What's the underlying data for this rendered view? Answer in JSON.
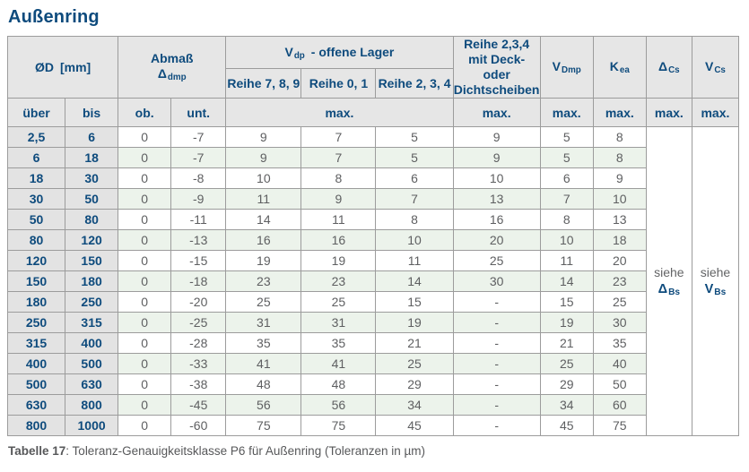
{
  "page_title": "Außenring",
  "colors": {
    "accent_blue": "#0e4b7d",
    "header_bg": "#e6e6e6",
    "range_col_bg": "#e3e3e3",
    "row_alt_bg": "#ecf3eb",
    "data_text": "#5e5f61",
    "border": "#9c9c9c"
  },
  "table": {
    "header": {
      "od": {
        "main": "ØD",
        "unit": "[mm]"
      },
      "abmass": {
        "line1": "Abmaß",
        "sym_main": "Δ",
        "sym_sub": "dmp"
      },
      "vdp_group": {
        "main": "V",
        "sub": "dp",
        "rest": "-  offene Lager"
      },
      "reihe_cols": [
        "Reihe 7, 8, 9",
        "Reihe 0, 1",
        "Reihe 2, 3, 4"
      ],
      "deck_lines": [
        "Reihe 2,3,4",
        "mit Deck- oder",
        "Dichtscheiben"
      ],
      "vdmp": {
        "main": "V",
        "sub": "Dmp"
      },
      "kea": {
        "main": "K",
        "sub": "ea"
      },
      "dcs": {
        "main": "Δ",
        "sub": "Cs"
      },
      "vcs": {
        "main": "V",
        "sub": "Cs"
      }
    },
    "subheader": {
      "uber": "über",
      "bis": "bis",
      "ob": "ob.",
      "unt": "unt.",
      "max": "max."
    },
    "rows": [
      {
        "uber": "2,5",
        "bis": "6",
        "ob": "0",
        "unt": "-7",
        "r789": "9",
        "r01": "7",
        "r234": "5",
        "deck": "9",
        "vdmp": "5",
        "kea": "8"
      },
      {
        "uber": "6",
        "bis": "18",
        "ob": "0",
        "unt": "-7",
        "r789": "9",
        "r01": "7",
        "r234": "5",
        "deck": "9",
        "vdmp": "5",
        "kea": "8"
      },
      {
        "uber": "18",
        "bis": "30",
        "ob": "0",
        "unt": "-8",
        "r789": "10",
        "r01": "8",
        "r234": "6",
        "deck": "10",
        "vdmp": "6",
        "kea": "9"
      },
      {
        "uber": "30",
        "bis": "50",
        "ob": "0",
        "unt": "-9",
        "r789": "11",
        "r01": "9",
        "r234": "7",
        "deck": "13",
        "vdmp": "7",
        "kea": "10"
      },
      {
        "uber": "50",
        "bis": "80",
        "ob": "0",
        "unt": "-11",
        "r789": "14",
        "r01": "11",
        "r234": "8",
        "deck": "16",
        "vdmp": "8",
        "kea": "13"
      },
      {
        "uber": "80",
        "bis": "120",
        "ob": "0",
        "unt": "-13",
        "r789": "16",
        "r01": "16",
        "r234": "10",
        "deck": "20",
        "vdmp": "10",
        "kea": "18"
      },
      {
        "uber": "120",
        "bis": "150",
        "ob": "0",
        "unt": "-15",
        "r789": "19",
        "r01": "19",
        "r234": "11",
        "deck": "25",
        "vdmp": "11",
        "kea": "20"
      },
      {
        "uber": "150",
        "bis": "180",
        "ob": "0",
        "unt": "-18",
        "r789": "23",
        "r01": "23",
        "r234": "14",
        "deck": "30",
        "vdmp": "14",
        "kea": "23"
      },
      {
        "uber": "180",
        "bis": "250",
        "ob": "0",
        "unt": "-20",
        "r789": "25",
        "r01": "25",
        "r234": "15",
        "deck": "-",
        "vdmp": "15",
        "kea": "25"
      },
      {
        "uber": "250",
        "bis": "315",
        "ob": "0",
        "unt": "-25",
        "r789": "31",
        "r01": "31",
        "r234": "19",
        "deck": "-",
        "vdmp": "19",
        "kea": "30"
      },
      {
        "uber": "315",
        "bis": "400",
        "ob": "0",
        "unt": "-28",
        "r789": "35",
        "r01": "35",
        "r234": "21",
        "deck": "-",
        "vdmp": "21",
        "kea": "35"
      },
      {
        "uber": "400",
        "bis": "500",
        "ob": "0",
        "unt": "-33",
        "r789": "41",
        "r01": "41",
        "r234": "25",
        "deck": "-",
        "vdmp": "25",
        "kea": "40"
      },
      {
        "uber": "500",
        "bis": "630",
        "ob": "0",
        "unt": "-38",
        "r789": "48",
        "r01": "48",
        "r234": "29",
        "deck": "-",
        "vdmp": "29",
        "kea": "50"
      },
      {
        "uber": "630",
        "bis": "800",
        "ob": "0",
        "unt": "-45",
        "r789": "56",
        "r01": "56",
        "r234": "34",
        "deck": "-",
        "vdmp": "34",
        "kea": "60"
      },
      {
        "uber": "800",
        "bis": "1000",
        "ob": "0",
        "unt": "-60",
        "r789": "75",
        "r01": "75",
        "r234": "45",
        "deck": "-",
        "vdmp": "45",
        "kea": "75"
      }
    ],
    "see_cells": {
      "dcs": {
        "word": "siehe",
        "sym_main": "Δ",
        "sym_sub": "Bs"
      },
      "vcs": {
        "word": "siehe",
        "sym_main": "V",
        "sym_sub": "Bs"
      }
    }
  },
  "caption": {
    "label": "Tabelle 17",
    "text": ": Toleranz-Genauigkeitsklasse P6 für Außenring (Toleranzen in µm)"
  }
}
